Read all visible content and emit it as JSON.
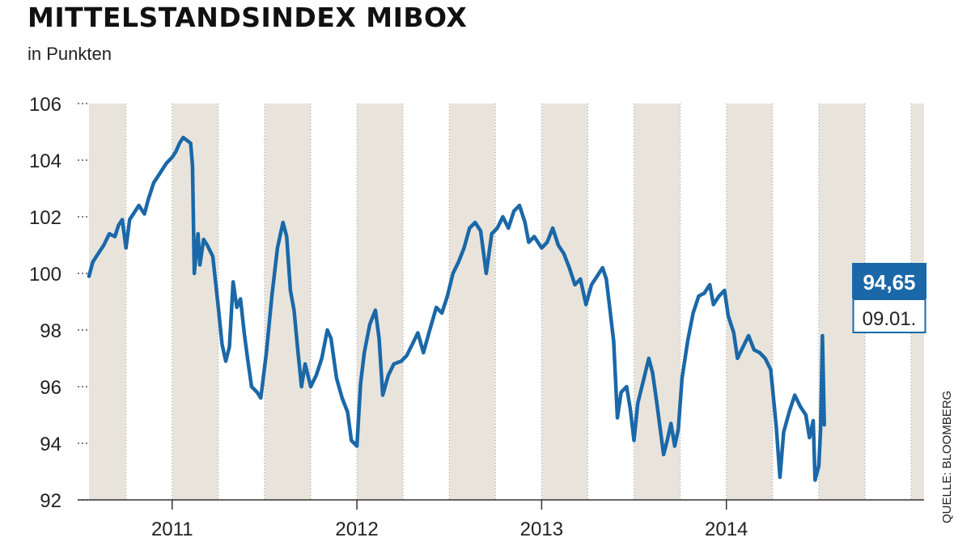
{
  "title": "MITTELSTANDSINDEX MIBOX",
  "subtitle": "in Punkten",
  "source": "QUELLE: BLOOMBERG",
  "colors": {
    "line": "#1a68a8",
    "band": "#e8e4dc",
    "callout_bg": "#1a68a8",
    "callout_text": "#ffffff"
  },
  "callout": {
    "value": "94,65",
    "date": "09.01."
  },
  "chart_data": {
    "type": "line",
    "title": "MITTELSTANDSINDEX MIBOX",
    "ylabel": "in Punkten",
    "ylim": [
      92,
      106
    ],
    "yticks": [
      92,
      94,
      96,
      98,
      100,
      102,
      104,
      106
    ],
    "xlim": [
      2010.55,
      2015.07
    ],
    "x_tick_labels": [
      "2011",
      "2012",
      "2013",
      "2014"
    ],
    "x_tick_values": [
      2011,
      2012,
      2013,
      2014
    ],
    "shaded_quarters": [
      [
        2010.5,
        2010.75
      ],
      [
        2011.0,
        2011.25
      ],
      [
        2011.5,
        2011.75
      ],
      [
        2012.0,
        2012.25
      ],
      [
        2012.5,
        2012.75
      ],
      [
        2013.0,
        2013.25
      ],
      [
        2013.5,
        2013.75
      ],
      [
        2014.0,
        2014.25
      ],
      [
        2014.5,
        2014.75
      ],
      [
        2015.0,
        2015.07
      ]
    ],
    "grid": "vertical dotted lines between bands",
    "series": [
      {
        "points": [
          [
            2010.55,
            99.9
          ],
          [
            2010.57,
            100.4
          ],
          [
            2010.6,
            100.7
          ],
          [
            2010.63,
            101.0
          ],
          [
            2010.66,
            101.4
          ],
          [
            2010.69,
            101.3
          ],
          [
            2010.71,
            101.7
          ],
          [
            2010.73,
            101.9
          ],
          [
            2010.75,
            100.9
          ],
          [
            2010.77,
            101.9
          ],
          [
            2010.79,
            102.1
          ],
          [
            2010.82,
            102.4
          ],
          [
            2010.85,
            102.1
          ],
          [
            2010.87,
            102.6
          ],
          [
            2010.9,
            103.2
          ],
          [
            2010.93,
            103.5
          ],
          [
            2010.95,
            103.7
          ],
          [
            2010.97,
            103.9
          ],
          [
            2011.0,
            104.1
          ],
          [
            2011.02,
            104.3
          ],
          [
            2011.04,
            104.6
          ],
          [
            2011.06,
            104.8
          ],
          [
            2011.08,
            104.7
          ],
          [
            2011.1,
            104.6
          ],
          [
            2011.11,
            103.8
          ],
          [
            2011.12,
            100.0
          ],
          [
            2011.14,
            101.4
          ],
          [
            2011.15,
            100.3
          ],
          [
            2011.17,
            101.2
          ],
          [
            2011.19,
            101.0
          ],
          [
            2011.22,
            100.6
          ],
          [
            2011.25,
            98.8
          ],
          [
            2011.27,
            97.5
          ],
          [
            2011.29,
            96.9
          ],
          [
            2011.31,
            97.4
          ],
          [
            2011.33,
            99.7
          ],
          [
            2011.35,
            98.8
          ],
          [
            2011.37,
            99.1
          ],
          [
            2011.39,
            97.9
          ],
          [
            2011.41,
            96.9
          ],
          [
            2011.43,
            96.0
          ],
          [
            2011.46,
            95.8
          ],
          [
            2011.48,
            95.6
          ],
          [
            2011.51,
            97.2
          ],
          [
            2011.54,
            99.2
          ],
          [
            2011.57,
            100.9
          ],
          [
            2011.6,
            101.8
          ],
          [
            2011.62,
            101.3
          ],
          [
            2011.64,
            99.4
          ],
          [
            2011.66,
            98.7
          ],
          [
            2011.68,
            97.3
          ],
          [
            2011.7,
            96.0
          ],
          [
            2011.72,
            96.8
          ],
          [
            2011.75,
            96.0
          ],
          [
            2011.78,
            96.4
          ],
          [
            2011.81,
            97.0
          ],
          [
            2011.84,
            98.0
          ],
          [
            2011.86,
            97.7
          ],
          [
            2011.89,
            96.3
          ],
          [
            2011.92,
            95.6
          ],
          [
            2011.95,
            95.1
          ],
          [
            2011.97,
            94.1
          ],
          [
            2012.0,
            93.9
          ],
          [
            2012.02,
            96.1
          ],
          [
            2012.04,
            97.2
          ],
          [
            2012.07,
            98.2
          ],
          [
            2012.1,
            98.7
          ],
          [
            2012.12,
            97.7
          ],
          [
            2012.14,
            95.7
          ],
          [
            2012.17,
            96.4
          ],
          [
            2012.2,
            96.8
          ],
          [
            2012.24,
            96.9
          ],
          [
            2012.27,
            97.1
          ],
          [
            2012.3,
            97.5
          ],
          [
            2012.33,
            97.9
          ],
          [
            2012.36,
            97.2
          ],
          [
            2012.39,
            97.9
          ],
          [
            2012.43,
            98.8
          ],
          [
            2012.46,
            98.6
          ],
          [
            2012.49,
            99.2
          ],
          [
            2012.52,
            100.0
          ],
          [
            2012.55,
            100.4
          ],
          [
            2012.58,
            100.9
          ],
          [
            2012.61,
            101.6
          ],
          [
            2012.64,
            101.8
          ],
          [
            2012.67,
            101.5
          ],
          [
            2012.7,
            100.0
          ],
          [
            2012.73,
            101.4
          ],
          [
            2012.76,
            101.6
          ],
          [
            2012.79,
            102.0
          ],
          [
            2012.82,
            101.6
          ],
          [
            2012.85,
            102.2
          ],
          [
            2012.88,
            102.4
          ],
          [
            2012.91,
            101.8
          ],
          [
            2012.93,
            101.1
          ],
          [
            2012.96,
            101.3
          ],
          [
            2013.0,
            100.9
          ],
          [
            2013.03,
            101.1
          ],
          [
            2013.06,
            101.6
          ],
          [
            2013.09,
            101.0
          ],
          [
            2013.12,
            100.7
          ],
          [
            2013.15,
            100.2
          ],
          [
            2013.18,
            99.6
          ],
          [
            2013.21,
            99.8
          ],
          [
            2013.24,
            98.9
          ],
          [
            2013.27,
            99.6
          ],
          [
            2013.3,
            99.9
          ],
          [
            2013.33,
            100.2
          ],
          [
            2013.35,
            99.8
          ],
          [
            2013.37,
            98.7
          ],
          [
            2013.39,
            97.6
          ],
          [
            2013.41,
            94.9
          ],
          [
            2013.43,
            95.8
          ],
          [
            2013.46,
            96.0
          ],
          [
            2013.48,
            95.2
          ],
          [
            2013.5,
            94.1
          ],
          [
            2013.52,
            95.4
          ],
          [
            2013.55,
            96.2
          ],
          [
            2013.58,
            97.0
          ],
          [
            2013.6,
            96.5
          ],
          [
            2013.62,
            95.6
          ],
          [
            2013.64,
            94.6
          ],
          [
            2013.66,
            93.6
          ],
          [
            2013.68,
            94.1
          ],
          [
            2013.7,
            94.7
          ],
          [
            2013.72,
            93.9
          ],
          [
            2013.74,
            94.5
          ],
          [
            2013.76,
            96.3
          ],
          [
            2013.79,
            97.6
          ],
          [
            2013.82,
            98.6
          ],
          [
            2013.85,
            99.2
          ],
          [
            2013.88,
            99.3
          ],
          [
            2013.91,
            99.6
          ],
          [
            2013.93,
            98.9
          ],
          [
            2013.96,
            99.2
          ],
          [
            2013.99,
            99.4
          ],
          [
            2014.01,
            98.5
          ],
          [
            2014.04,
            97.9
          ],
          [
            2014.06,
            97.0
          ],
          [
            2014.09,
            97.4
          ],
          [
            2014.12,
            97.8
          ],
          [
            2014.15,
            97.3
          ],
          [
            2014.18,
            97.2
          ],
          [
            2014.21,
            97.0
          ],
          [
            2014.24,
            96.6
          ],
          [
            2014.27,
            94.6
          ],
          [
            2014.29,
            92.8
          ],
          [
            2014.31,
            94.4
          ],
          [
            2014.34,
            95.1
          ],
          [
            2014.37,
            95.7
          ],
          [
            2014.4,
            95.3
          ],
          [
            2014.43,
            95.0
          ],
          [
            2014.45,
            94.2
          ],
          [
            2014.47,
            94.8
          ],
          [
            2014.48,
            92.7
          ],
          [
            2014.5,
            93.2
          ],
          [
            2014.51,
            94.5
          ],
          [
            2014.52,
            97.8
          ],
          [
            2014.53,
            94.65
          ]
        ]
      }
    ]
  }
}
